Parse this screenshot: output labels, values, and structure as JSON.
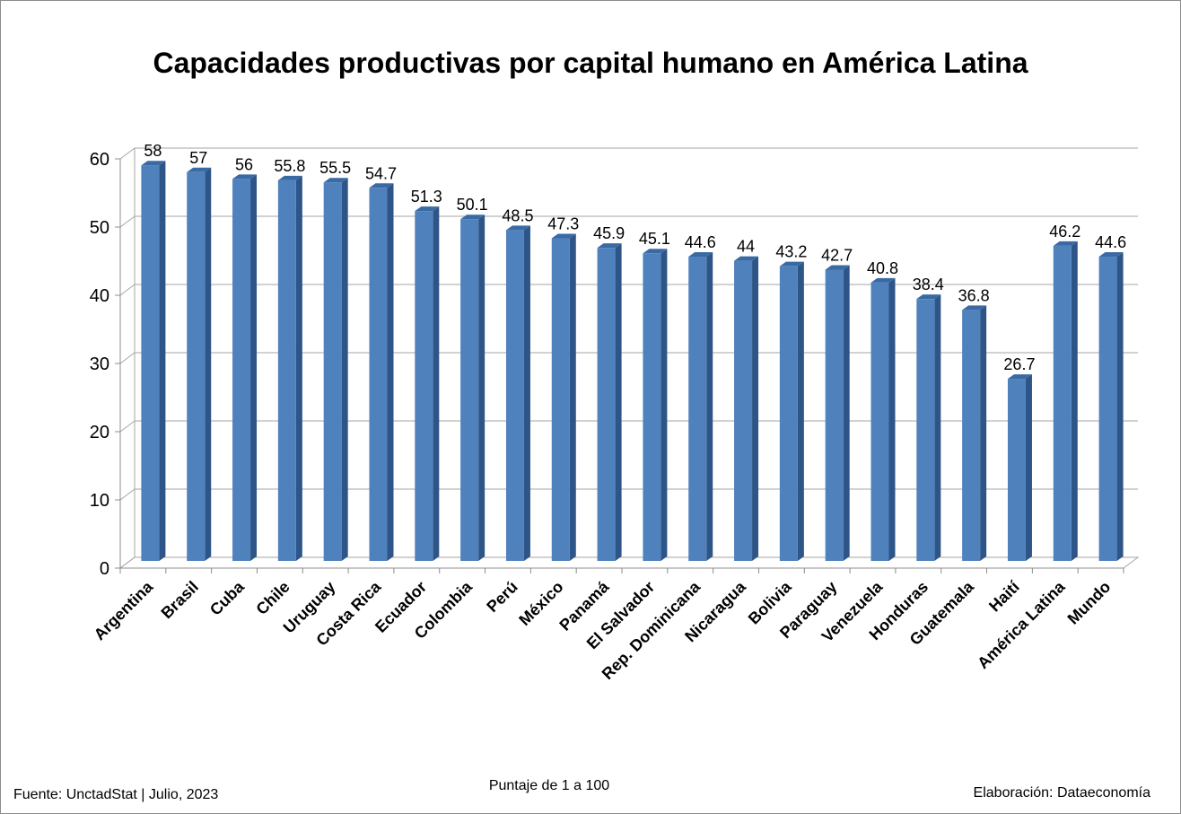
{
  "chart_data": {
    "type": "bar",
    "title": "Capacidades productivas por capital humano en América Latina",
    "subtitle": "Puntaje de 1 a 100",
    "categories": [
      "Argentina",
      "Brasil",
      "Cuba",
      "Chile",
      "Uruguay",
      "Costa Rica",
      "Ecuador",
      "Colombia",
      "Perú",
      "México",
      "Panamá",
      "El Salvador",
      "Rep. Dominicana",
      "Nicaragua",
      "Bolivia",
      "Paraguay",
      "Venezuela",
      "Honduras",
      "Guatemala",
      "Haití",
      "América Latina",
      "Mundo"
    ],
    "values": [
      58,
      57,
      56,
      55.8,
      55.5,
      54.7,
      51.3,
      50.1,
      48.5,
      47.3,
      45.9,
      45.1,
      44.6,
      44,
      43.2,
      42.7,
      40.8,
      38.4,
      36.8,
      26.7,
      46.2,
      44.6
    ],
    "ylim": [
      0,
      60
    ],
    "yticks": [
      0,
      10,
      20,
      30,
      40,
      50,
      60
    ],
    "xlabel": "",
    "ylabel": "",
    "grid": true,
    "legend": "none",
    "bar_color": "#4f81bd",
    "bar_side_color": "#2e5587",
    "bar_top_color": "#3a6aa3"
  },
  "footer": {
    "source": "Fuente: UnctadStat | Julio, 2023",
    "credit": "Elaboración: Dataeconomía"
  }
}
